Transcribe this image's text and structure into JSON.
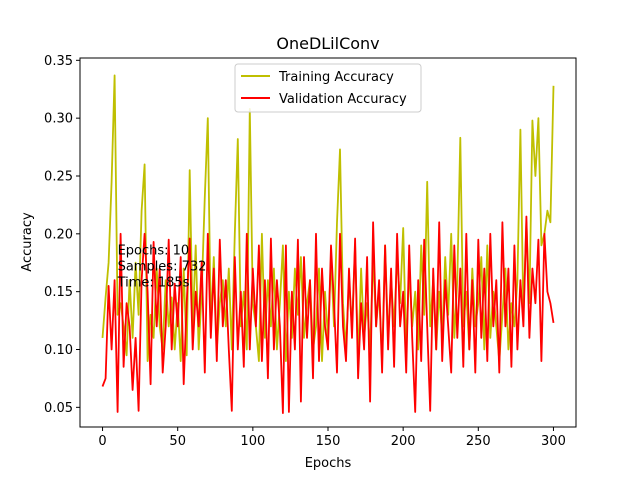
{
  "chart_data": {
    "type": "line",
    "title": "OneDLilConv",
    "xlabel": "Epochs",
    "ylabel": "Accuracy",
    "xlim": [
      -15,
      315
    ],
    "ylim": [
      0.033,
      0.352
    ],
    "x_ticks": [
      0,
      50,
      100,
      150,
      200,
      250,
      300
    ],
    "y_ticks": [
      0.05,
      0.1,
      0.15,
      0.2,
      0.25,
      0.3,
      0.35
    ],
    "grid": false,
    "legend_position": "upper center",
    "annotation": [
      "Epochs: 10",
      "Samples: 732",
      "Time: 185s"
    ],
    "annotation_anchor": [
      10,
      0.182
    ],
    "series": [
      {
        "name": "Training Accuracy",
        "color": "#bfbf00",
        "points": [
          [
            0,
            0.11
          ],
          [
            2,
            0.145
          ],
          [
            4,
            0.175
          ],
          [
            6,
            0.245
          ],
          [
            8,
            0.337
          ],
          [
            10,
            0.13
          ],
          [
            12,
            0.14
          ],
          [
            14,
            0.12
          ],
          [
            16,
            0.095
          ],
          [
            18,
            0.16
          ],
          [
            20,
            0.11
          ],
          [
            22,
            0.175
          ],
          [
            24,
            0.13
          ],
          [
            26,
            0.22
          ],
          [
            28,
            0.26
          ],
          [
            30,
            0.09
          ],
          [
            32,
            0.13
          ],
          [
            34,
            0.11
          ],
          [
            36,
            0.17
          ],
          [
            38,
            0.12
          ],
          [
            40,
            0.1
          ],
          [
            42,
            0.16
          ],
          [
            44,
            0.12
          ],
          [
            46,
            0.145
          ],
          [
            48,
            0.1
          ],
          [
            50,
            0.14
          ],
          [
            52,
            0.09
          ],
          [
            54,
            0.17
          ],
          [
            56,
            0.095
          ],
          [
            58,
            0.255
          ],
          [
            60,
            0.12
          ],
          [
            62,
            0.19
          ],
          [
            64,
            0.1
          ],
          [
            66,
            0.15
          ],
          [
            68,
            0.232
          ],
          [
            70,
            0.3
          ],
          [
            72,
            0.12
          ],
          [
            74,
            0.18
          ],
          [
            76,
            0.1
          ],
          [
            78,
            0.14
          ],
          [
            80,
            0.16
          ],
          [
            82,
            0.12
          ],
          [
            84,
            0.17
          ],
          [
            86,
            0.1
          ],
          [
            88,
            0.2
          ],
          [
            90,
            0.282
          ],
          [
            92,
            0.12
          ],
          [
            94,
            0.15
          ],
          [
            96,
            0.1
          ],
          [
            98,
            0.308
          ],
          [
            100,
            0.14
          ],
          [
            102,
            0.12
          ],
          [
            104,
            0.09
          ],
          [
            106,
            0.2
          ],
          [
            108,
            0.11
          ],
          [
            110,
            0.16
          ],
          [
            112,
            0.12
          ],
          [
            114,
            0.17
          ],
          [
            116,
            0.1
          ],
          [
            118,
            0.14
          ],
          [
            120,
            0.19
          ],
          [
            122,
            0.09
          ],
          [
            124,
            0.15
          ],
          [
            126,
            0.11
          ],
          [
            128,
            0.17
          ],
          [
            130,
            0.13
          ],
          [
            132,
            0.18
          ],
          [
            134,
            0.11
          ],
          [
            136,
            0.14
          ],
          [
            138,
            0.16
          ],
          [
            140,
            0.1
          ],
          [
            142,
            0.12
          ],
          [
            144,
            0.17
          ],
          [
            146,
            0.09
          ],
          [
            148,
            0.15
          ],
          [
            150,
            0.11
          ],
          [
            152,
            0.18
          ],
          [
            154,
            0.12
          ],
          [
            156,
            0.21
          ],
          [
            158,
            0.273
          ],
          [
            160,
            0.14
          ],
          [
            162,
            0.1
          ],
          [
            164,
            0.16
          ],
          [
            166,
            0.12
          ],
          [
            168,
            0.19
          ],
          [
            170,
            0.09
          ],
          [
            172,
            0.17
          ],
          [
            174,
            0.11
          ],
          [
            176,
            0.14
          ],
          [
            178,
            0.1
          ],
          [
            180,
            0.18
          ],
          [
            182,
            0.12
          ],
          [
            184,
            0.15
          ],
          [
            186,
            0.09
          ],
          [
            188,
            0.19
          ],
          [
            190,
            0.11
          ],
          [
            192,
            0.16
          ],
          [
            194,
            0.12
          ],
          [
            196,
            0.18
          ],
          [
            198,
            0.14
          ],
          [
            200,
            0.205
          ],
          [
            202,
            0.1
          ],
          [
            204,
            0.17
          ],
          [
            206,
            0.12
          ],
          [
            208,
            0.15
          ],
          [
            210,
            0.1
          ],
          [
            212,
            0.19
          ],
          [
            214,
            0.13
          ],
          [
            216,
            0.245
          ],
          [
            218,
            0.12
          ],
          [
            220,
            0.16
          ],
          [
            222,
            0.1
          ],
          [
            224,
            0.15
          ],
          [
            226,
            0.11
          ],
          [
            228,
            0.18
          ],
          [
            230,
            0.13
          ],
          [
            232,
            0.2
          ],
          [
            234,
            0.11
          ],
          [
            236,
            0.16
          ],
          [
            238,
            0.283
          ],
          [
            240,
            0.12
          ],
          [
            242,
            0.15
          ],
          [
            244,
            0.1
          ],
          [
            246,
            0.17
          ],
          [
            248,
            0.12
          ],
          [
            250,
            0.14
          ],
          [
            252,
            0.18
          ],
          [
            254,
            0.1
          ],
          [
            256,
            0.19
          ],
          [
            258,
            0.11
          ],
          [
            260,
            0.15
          ],
          [
            262,
            0.12
          ],
          [
            264,
            0.09
          ],
          [
            266,
            0.13
          ],
          [
            268,
            0.17
          ],
          [
            270,
            0.1
          ],
          [
            272,
            0.14
          ],
          [
            274,
            0.12
          ],
          [
            276,
            0.16
          ],
          [
            278,
            0.29
          ],
          [
            280,
            0.13
          ],
          [
            282,
            0.21
          ],
          [
            284,
            0.14
          ],
          [
            286,
            0.298
          ],
          [
            288,
            0.25
          ],
          [
            290,
            0.3
          ],
          [
            292,
            0.19
          ],
          [
            294,
            0.2
          ],
          [
            296,
            0.22
          ],
          [
            298,
            0.21
          ],
          [
            300,
            0.328
          ]
        ]
      },
      {
        "name": "Validation Accuracy",
        "color": "#ff0000",
        "points": [
          [
            0,
            0.068
          ],
          [
            2,
            0.075
          ],
          [
            4,
            0.155
          ],
          [
            6,
            0.1
          ],
          [
            8,
            0.16
          ],
          [
            10,
            0.046
          ],
          [
            12,
            0.2
          ],
          [
            14,
            0.085
          ],
          [
            16,
            0.14
          ],
          [
            18,
            0.12
          ],
          [
            20,
            0.065
          ],
          [
            22,
            0.11
          ],
          [
            24,
            0.047
          ],
          [
            26,
            0.16
          ],
          [
            28,
            0.2
          ],
          [
            30,
            0.15
          ],
          [
            32,
            0.07
          ],
          [
            34,
            0.193
          ],
          [
            36,
            0.12
          ],
          [
            38,
            0.17
          ],
          [
            40,
            0.08
          ],
          [
            42,
            0.12
          ],
          [
            44,
            0.195
          ],
          [
            46,
            0.1
          ],
          [
            48,
            0.157
          ],
          [
            50,
            0.12
          ],
          [
            52,
            0.18
          ],
          [
            54,
            0.07
          ],
          [
            56,
            0.14
          ],
          [
            58,
            0.196
          ],
          [
            60,
            0.1
          ],
          [
            62,
            0.15
          ],
          [
            64,
            0.12
          ],
          [
            66,
            0.176
          ],
          [
            68,
            0.08
          ],
          [
            70,
            0.2
          ],
          [
            72,
            0.11
          ],
          [
            74,
            0.17
          ],
          [
            76,
            0.09
          ],
          [
            78,
            0.195
          ],
          [
            80,
            0.12
          ],
          [
            82,
            0.16
          ],
          [
            84,
            0.1
          ],
          [
            86,
            0.047
          ],
          [
            88,
            0.18
          ],
          [
            90,
            0.1
          ],
          [
            92,
            0.15
          ],
          [
            94,
            0.085
          ],
          [
            96,
            0.2
          ],
          [
            98,
            0.1
          ],
          [
            100,
            0.17
          ],
          [
            102,
            0.12
          ],
          [
            104,
            0.19
          ],
          [
            106,
            0.09
          ],
          [
            108,
            0.16
          ],
          [
            110,
            0.075
          ],
          [
            112,
            0.196
          ],
          [
            114,
            0.1
          ],
          [
            116,
            0.16
          ],
          [
            118,
            0.12
          ],
          [
            120,
            0.045
          ],
          [
            122,
            0.19
          ],
          [
            124,
            0.046
          ],
          [
            126,
            0.15
          ],
          [
            128,
            0.1
          ],
          [
            130,
            0.195
          ],
          [
            132,
            0.055
          ],
          [
            134,
            0.18
          ],
          [
            136,
            0.11
          ],
          [
            138,
            0.16
          ],
          [
            140,
            0.075
          ],
          [
            142,
            0.2
          ],
          [
            144,
            0.09
          ],
          [
            146,
            0.17
          ],
          [
            148,
            0.12
          ],
          [
            150,
            0.1
          ],
          [
            152,
            0.19
          ],
          [
            154,
            0.14
          ],
          [
            156,
            0.08
          ],
          [
            158,
            0.2
          ],
          [
            160,
            0.12
          ],
          [
            162,
            0.09
          ],
          [
            164,
            0.17
          ],
          [
            166,
            0.11
          ],
          [
            168,
            0.196
          ],
          [
            170,
            0.075
          ],
          [
            172,
            0.14
          ],
          [
            174,
            0.1
          ],
          [
            176,
            0.18
          ],
          [
            178,
            0.055
          ],
          [
            180,
            0.21
          ],
          [
            182,
            0.12
          ],
          [
            184,
            0.16
          ],
          [
            186,
            0.08
          ],
          [
            188,
            0.19
          ],
          [
            190,
            0.1
          ],
          [
            192,
            0.17
          ],
          [
            194,
            0.085
          ],
          [
            196,
            0.2
          ],
          [
            198,
            0.12
          ],
          [
            200,
            0.15
          ],
          [
            202,
            0.08
          ],
          [
            204,
            0.19
          ],
          [
            206,
            0.11
          ],
          [
            208,
            0.046
          ],
          [
            210,
            0.16
          ],
          [
            212,
            0.09
          ],
          [
            214,
            0.195
          ],
          [
            216,
            0.12
          ],
          [
            218,
            0.047
          ],
          [
            220,
            0.17
          ],
          [
            222,
            0.1
          ],
          [
            224,
            0.21
          ],
          [
            226,
            0.09
          ],
          [
            228,
            0.16
          ],
          [
            230,
            0.12
          ],
          [
            232,
            0.08
          ],
          [
            234,
            0.19
          ],
          [
            236,
            0.11
          ],
          [
            238,
            0.17
          ],
          [
            240,
            0.085
          ],
          [
            242,
            0.2
          ],
          [
            244,
            0.1
          ],
          [
            246,
            0.16
          ],
          [
            248,
            0.08
          ],
          [
            250,
            0.195
          ],
          [
            252,
            0.11
          ],
          [
            254,
            0.17
          ],
          [
            256,
            0.09
          ],
          [
            258,
            0.2
          ],
          [
            260,
            0.12
          ],
          [
            262,
            0.16
          ],
          [
            264,
            0.08
          ],
          [
            266,
            0.21
          ],
          [
            268,
            0.12
          ],
          [
            270,
            0.17
          ],
          [
            272,
            0.085
          ],
          [
            274,
            0.19
          ],
          [
            276,
            0.1
          ],
          [
            278,
            0.16
          ],
          [
            280,
            0.12
          ],
          [
            282,
            0.215
          ],
          [
            284,
            0.11
          ],
          [
            286,
            0.17
          ],
          [
            288,
            0.14
          ],
          [
            290,
            0.195
          ],
          [
            292,
            0.09
          ],
          [
            294,
            0.2
          ],
          [
            296,
            0.15
          ],
          [
            298,
            0.14
          ],
          [
            300,
            0.123
          ]
        ]
      }
    ]
  }
}
